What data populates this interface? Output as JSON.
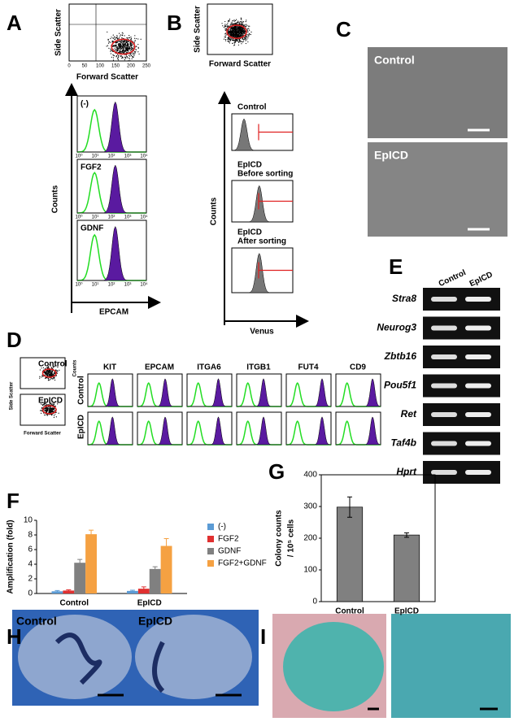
{
  "panel_labels": [
    "A",
    "B",
    "C",
    "D",
    "E",
    "F",
    "G",
    "H",
    "I"
  ],
  "A": {
    "y_label": "Side Scatter",
    "x_label": "Forward Scatter",
    "scatter_ticks": [
      0,
      50,
      100,
      150,
      200,
      250
    ],
    "histograms": [
      "(-)",
      "FGF2",
      "GDNF"
    ],
    "counts": "Counts",
    "marker": "EPCAM",
    "log_ticks": [
      "10⁰",
      "10¹",
      "10²",
      "10³",
      "10⁴"
    ]
  },
  "B": {
    "y_label": "Side Scatter",
    "x_label": "Forward Scatter",
    "histograms": [
      [
        "Control"
      ],
      [
        "EpICD",
        "Before sorting"
      ],
      [
        "EpICD",
        "After sorting"
      ]
    ],
    "counts": "Counts",
    "marker": "Venus"
  },
  "C": {
    "images": [
      "Control",
      "EpICD"
    ]
  },
  "D": {
    "gates": [
      "Control",
      "EpICD"
    ],
    "y_label": "Side Scatter",
    "x_label": "Forward Scatter",
    "markers": [
      "KIT",
      "EPCAM",
      "ITGA6",
      "ITGB1",
      "FUT4",
      "CD9"
    ],
    "row_labels": [
      "Control",
      "EpICD"
    ],
    "counts": "Counts"
  },
  "E": {
    "columns": [
      "Control",
      "EpICD"
    ],
    "genes": [
      "Stra8",
      "Neurog3",
      "Zbtb16",
      "Pou5f1",
      "Ret",
      "Taf4b",
      "Hprt"
    ]
  },
  "H": {
    "images": [
      "Control",
      "EpICD"
    ]
  },
  "chart_data": [
    {
      "type": "bar",
      "ylabel": "Amplification (fold)",
      "categories": [
        "Control",
        "EpICD"
      ],
      "series": [
        {
          "name": "(-)",
          "color": "#5b9bd5",
          "values": [
            0.3,
            0.35
          ],
          "errors": [
            0.1,
            0.1
          ]
        },
        {
          "name": "FGF2",
          "color": "#e03030",
          "values": [
            0.4,
            0.65
          ],
          "errors": [
            0.1,
            0.25
          ]
        },
        {
          "name": "GDNF",
          "color": "#808080",
          "values": [
            4.2,
            3.35
          ],
          "errors": [
            0.45,
            0.3
          ]
        },
        {
          "name": "FGF2+GDNF",
          "color": "#f5a142",
          "values": [
            8.1,
            6.5
          ],
          "errors": [
            0.55,
            1.0
          ]
        }
      ],
      "ylim": [
        0,
        10
      ],
      "yticks": [
        0,
        2,
        4,
        6,
        8,
        10
      ],
      "legend": "right"
    },
    {
      "type": "bar",
      "ylabel": [
        "Colony counts",
        "/ 10⁵ cells"
      ],
      "categories": [
        "Control",
        "EpICD"
      ],
      "values": [
        298,
        210
      ],
      "errors": [
        32,
        7
      ],
      "color": "#808080",
      "ylim": [
        0,
        400
      ],
      "yticks": [
        0,
        100,
        200,
        300,
        400
      ]
    }
  ]
}
